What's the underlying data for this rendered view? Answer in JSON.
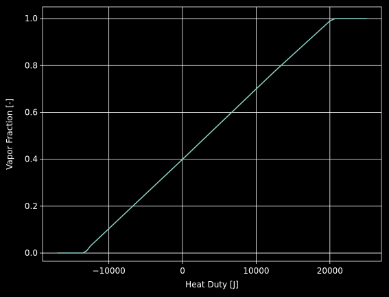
{
  "chart_data": {
    "type": "line",
    "xlabel": "Heat Duty [J]",
    "ylabel": "Vapor Fraction [-]",
    "xlim": [
      -19000,
      27000
    ],
    "ylim": [
      -0.035,
      1.05
    ],
    "xticks": [
      -10000,
      0,
      10000,
      20000
    ],
    "xtick_labels": [
      "−10000",
      "0",
      "10000",
      "20000"
    ],
    "yticks": [
      0.0,
      0.2,
      0.4,
      0.6,
      0.8,
      1.0
    ],
    "ytick_labels": [
      "0.0",
      "0.2",
      "0.4",
      "0.6",
      "0.8",
      "1.0"
    ],
    "grid": true,
    "colors": {
      "background": "#000000",
      "foreground": "#ffffff",
      "line": "#8dd3c7"
    },
    "series": [
      {
        "x": [
          -17000,
          -13500,
          -13000,
          -12500,
          0,
          12500,
          20000,
          20700,
          25000
        ],
        "y": [
          0.0,
          0.0,
          0.01,
          0.03,
          0.4,
          0.775,
          0.99,
          1.0,
          1.0
        ]
      }
    ]
  }
}
